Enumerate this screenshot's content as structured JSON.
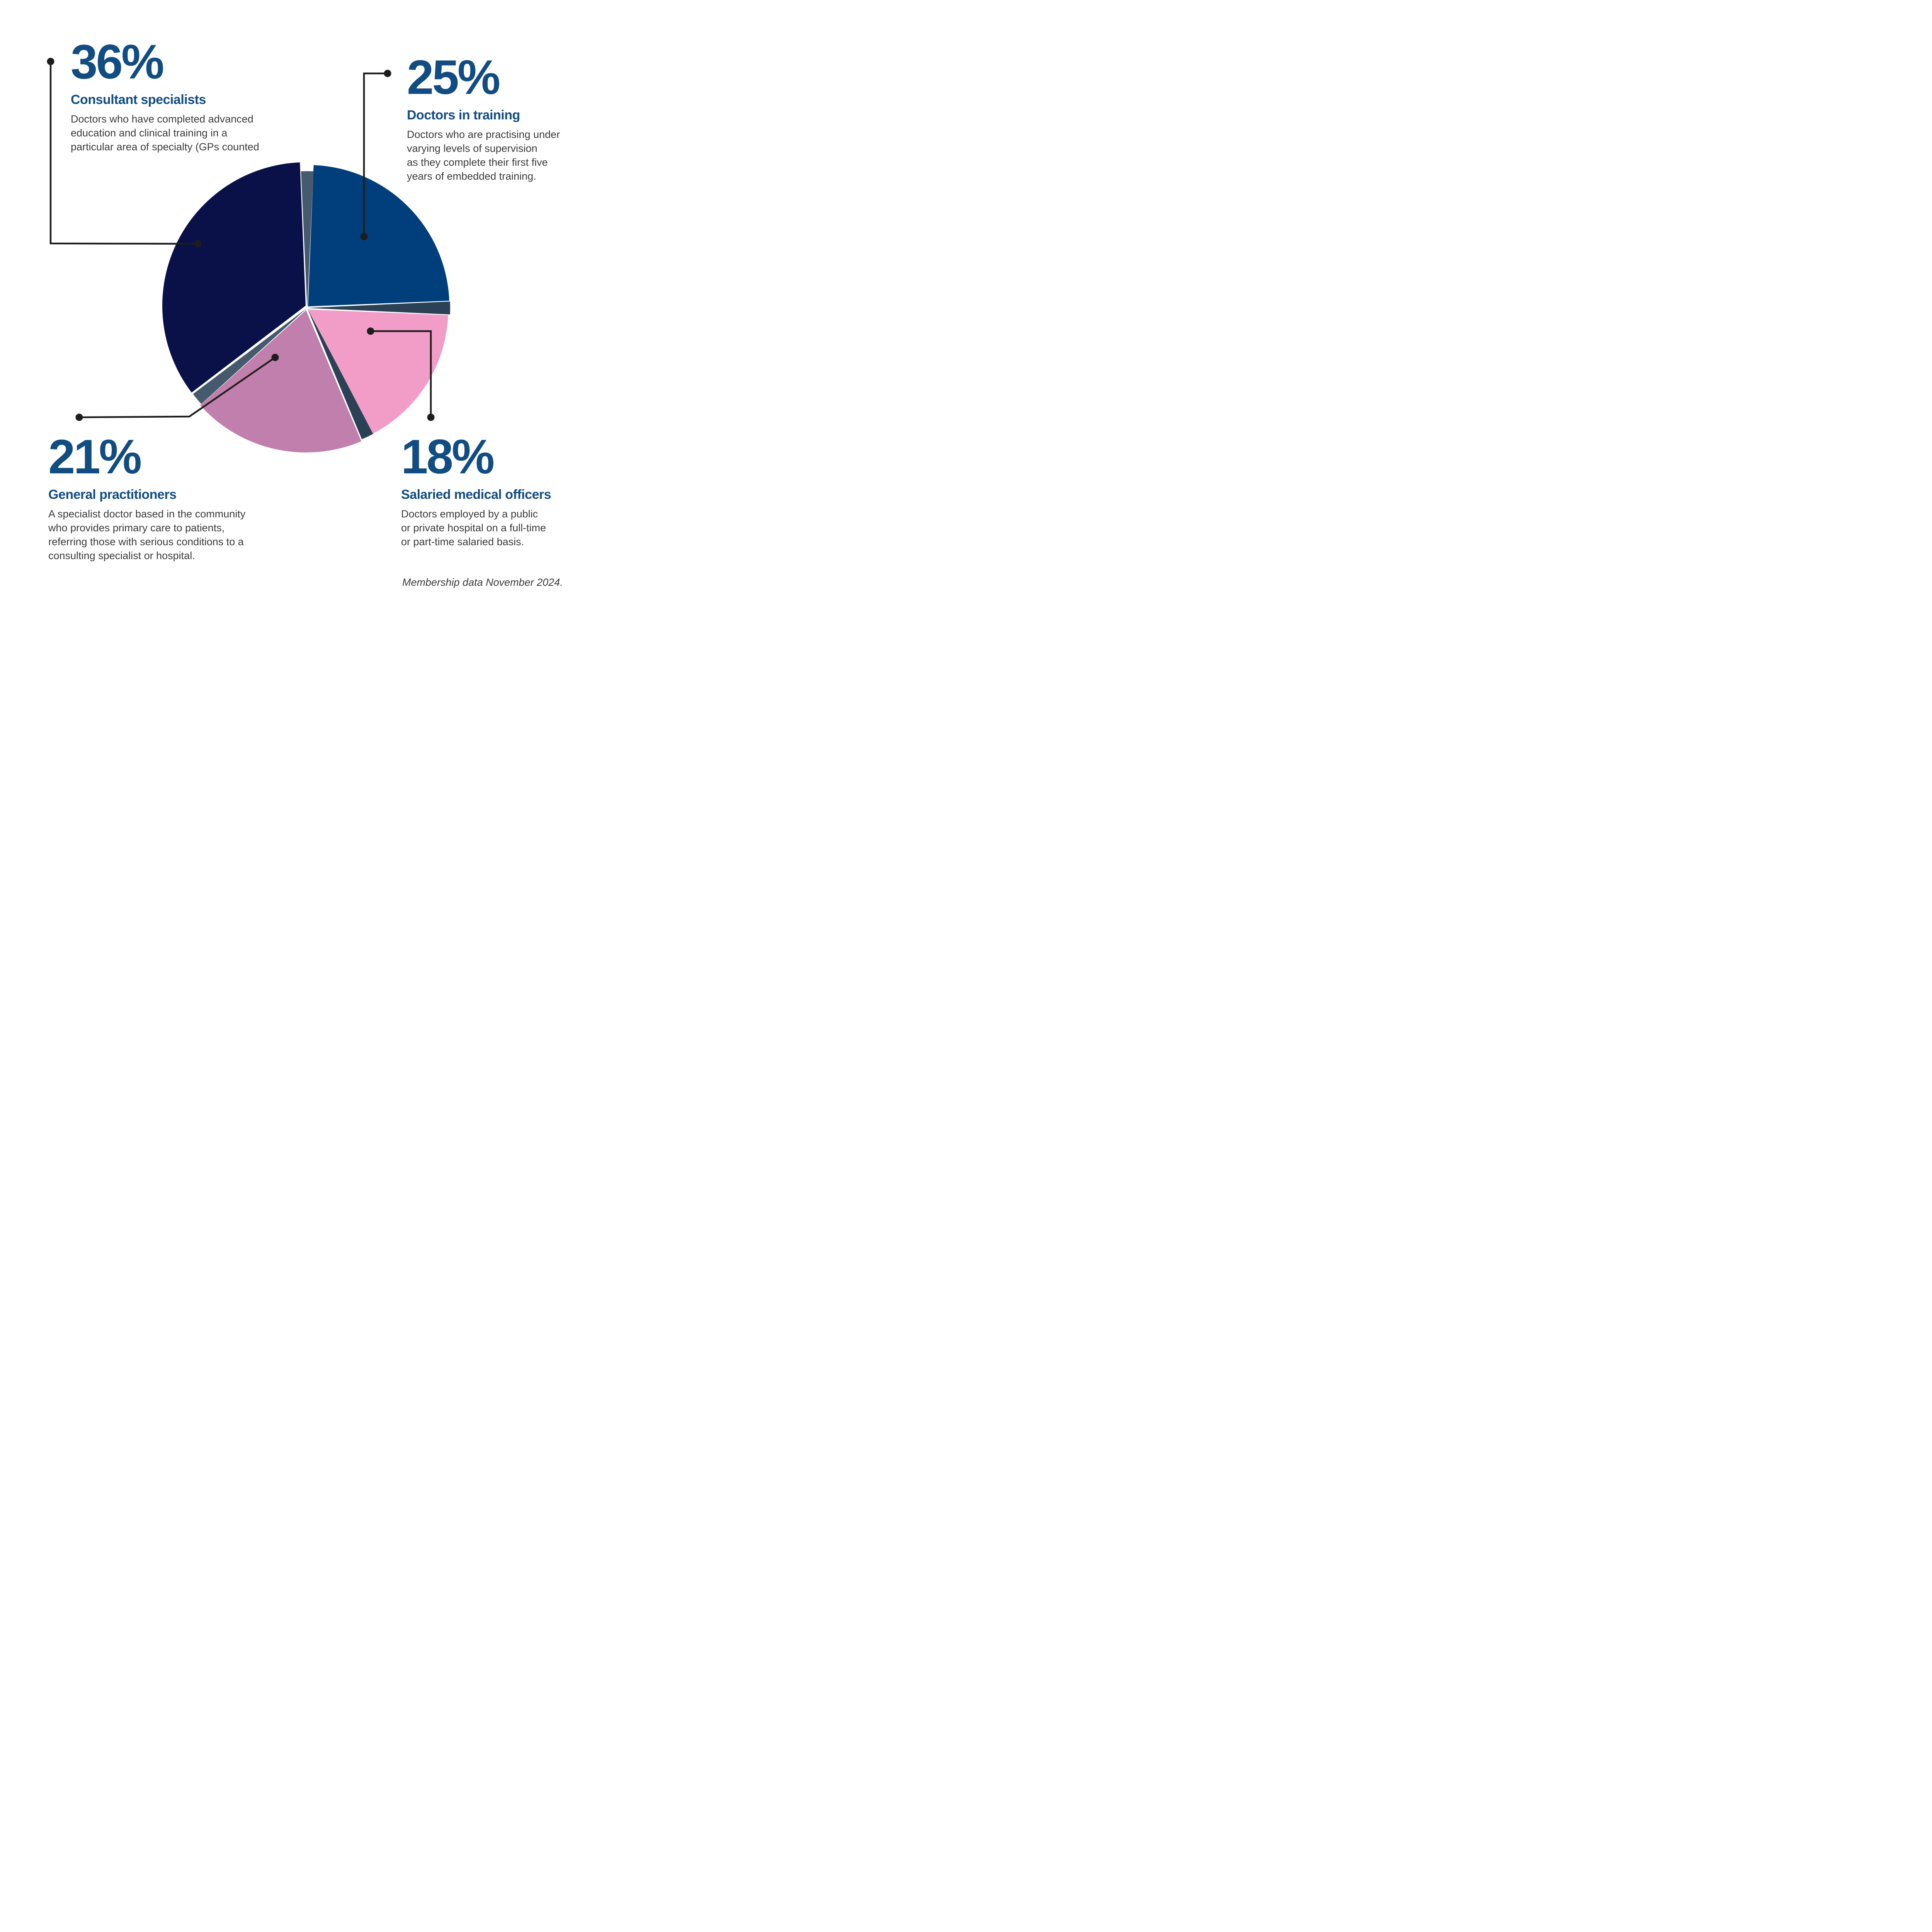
{
  "chart_data": {
    "type": "pie",
    "title": "",
    "legend": "none",
    "labels_as_callouts": true,
    "start_angle_deg_from_top": 0,
    "direction": "clockwise",
    "categories": [
      "Doctors in training",
      "Salaried medical officers",
      "General practitioners",
      "Consultant specialists"
    ],
    "values": [
      25,
      18,
      21,
      36
    ],
    "slices": [
      {
        "label": "Doctors in training",
        "value": 25,
        "color": "#013E7C"
      },
      {
        "label": "Salaried medical officers",
        "value": 18,
        "color": "#F29DC8"
      },
      {
        "label": "General practitioners",
        "value": 21,
        "color": "#C17FAD"
      },
      {
        "label": "Consultant specialists",
        "value": 36,
        "color": "#0A1148"
      }
    ]
  },
  "segments": {
    "consultant_specialists": {
      "percent": "36%",
      "title": "Consultant specialists",
      "description": "Doctors who have completed advanced\neducation and clinical training in a\nparticular area of specialty (GPs counted"
    },
    "doctors_in_training": {
      "percent": "25%",
      "title": "Doctors in training",
      "description": "Doctors who are practising under\nvarying levels of supervision\nas they complete their first five\nyears of embedded training."
    },
    "general_practitioners": {
      "percent": "21%",
      "title": "General practitioners",
      "description": "A specialist doctor based in the community\nwho provides primary care to patients,\nreferring those with serious conditions to a\nconsulting specialist or hospital."
    },
    "salaried_medical_officers": {
      "percent": "18%",
      "title": "Salaried medical officers",
      "description": "Doctors employed by a public\nor private hospital on a full-time\nor part-time salaried basis."
    }
  },
  "footer": {
    "note": "Membership data November 2024."
  },
  "colors": {
    "heading_text": "#114C82",
    "body_text": "#3B3B3B",
    "slice_blue": "#013E7C",
    "slice_pink": "#F29DC8",
    "slice_mauve": "#C17FAD",
    "slice_navy": "#0A1148",
    "edge_dark": "#2B4155",
    "edge_light": "#455A6C",
    "connector": "#1D1D1D",
    "background": "#FFFFFF"
  }
}
